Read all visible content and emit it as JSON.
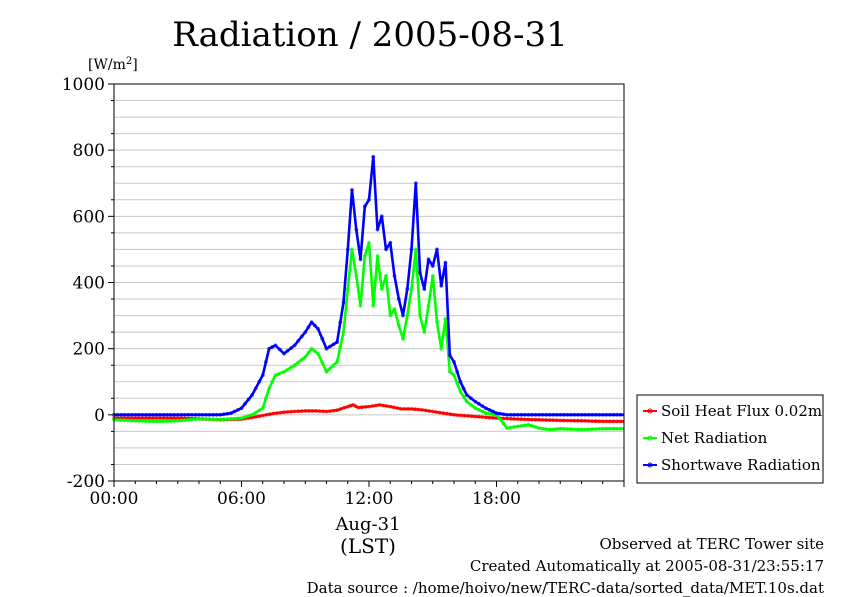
{
  "chart_data": {
    "type": "line",
    "title": "Radiation / 2005-08-31",
    "ylabel_unit": "[W/m",
    "ylabel_sup": "2",
    "ylabel_close": "]",
    "ylim": [
      -200,
      1000
    ],
    "yticks": [
      -200,
      0,
      200,
      400,
      600,
      800,
      1000
    ],
    "y_tick_labels": [
      "-200",
      "0",
      "200",
      "400",
      "600",
      "800",
      "1000"
    ],
    "xlim_hours": [
      0,
      24
    ],
    "xticks_hours": [
      0,
      6,
      12,
      18
    ],
    "x_tick_labels": [
      "00:00",
      "06:00",
      "12:00",
      "18:00"
    ],
    "date_label": "Aug-31",
    "xlabel": "(LST)",
    "grid": true,
    "legend_position": "right",
    "series": [
      {
        "name": "Soil Heat Flux 0.02m",
        "color": "#ff0000",
        "x": [
          0,
          1,
          2,
          3,
          4,
          5,
          6,
          6.5,
          7,
          7.5,
          8,
          8.5,
          9,
          9.5,
          10,
          10.5,
          11,
          11.25,
          11.5,
          12,
          12.5,
          13,
          13.5,
          14,
          14.5,
          15,
          15.5,
          16,
          17,
          18,
          19,
          20,
          21,
          22,
          23,
          24
        ],
        "y": [
          -10,
          -10,
          -10,
          -10,
          -12,
          -15,
          -13,
          -8,
          -2,
          4,
          8,
          10,
          12,
          12,
          10,
          14,
          25,
          30,
          22,
          25,
          30,
          25,
          18,
          18,
          15,
          10,
          5,
          0,
          -5,
          -10,
          -13,
          -15,
          -17,
          -18,
          -20,
          -20
        ]
      },
      {
        "name": "Net Radiation",
        "color": "#00ff00",
        "x": [
          0,
          1,
          2,
          3,
          4,
          5,
          5.5,
          6,
          6.5,
          7,
          7.3,
          7.6,
          8,
          8.5,
          9,
          9.3,
          9.6,
          10,
          10.5,
          10.8,
          11,
          11.2,
          11.4,
          11.6,
          11.8,
          12,
          12.2,
          12.4,
          12.6,
          12.8,
          13,
          13.2,
          13.4,
          13.6,
          13.8,
          14,
          14.2,
          14.4,
          14.6,
          14.8,
          15,
          15.2,
          15.4,
          15.6,
          15.8,
          16,
          16.3,
          16.6,
          17,
          17.5,
          18,
          18.5,
          19,
          19.5,
          20,
          20.5,
          21,
          22,
          23,
          24
        ],
        "y": [
          -15,
          -18,
          -20,
          -18,
          -12,
          -14,
          -12,
          -10,
          0,
          20,
          80,
          120,
          130,
          150,
          175,
          200,
          185,
          130,
          160,
          250,
          380,
          500,
          420,
          330,
          480,
          520,
          330,
          480,
          380,
          420,
          300,
          320,
          270,
          230,
          300,
          380,
          500,
          300,
          250,
          330,
          420,
          280,
          200,
          290,
          130,
          120,
          70,
          40,
          20,
          5,
          0,
          -40,
          -35,
          -30,
          -40,
          -45,
          -42,
          -45,
          -42,
          -42
        ]
      },
      {
        "name": "Shortwave Radiation",
        "color": "#0000ff",
        "x": [
          0,
          1,
          2,
          3,
          4,
          5,
          5.5,
          6,
          6.5,
          7,
          7.3,
          7.6,
          8,
          8.5,
          9,
          9.3,
          9.6,
          10,
          10.5,
          10.8,
          11,
          11.2,
          11.4,
          11.6,
          11.8,
          12,
          12.2,
          12.4,
          12.6,
          12.8,
          13,
          13.2,
          13.4,
          13.6,
          13.8,
          14,
          14.2,
          14.4,
          14.6,
          14.8,
          15,
          15.2,
          15.4,
          15.6,
          15.8,
          16,
          16.3,
          16.6,
          17,
          17.5,
          18,
          18.5,
          19,
          20,
          21,
          22,
          23,
          24
        ],
        "y": [
          0,
          0,
          0,
          0,
          0,
          0,
          5,
          20,
          60,
          120,
          200,
          210,
          185,
          210,
          250,
          280,
          260,
          200,
          220,
          340,
          500,
          680,
          560,
          470,
          630,
          650,
          780,
          560,
          600,
          500,
          520,
          420,
          350,
          300,
          380,
          500,
          700,
          430,
          380,
          470,
          450,
          500,
          390,
          460,
          180,
          160,
          100,
          60,
          40,
          20,
          5,
          0,
          0,
          0,
          0,
          0,
          0,
          0
        ]
      }
    ]
  },
  "footer": {
    "observed": "Observed at TERC Tower site",
    "created": "Created Automatically at 2005-08-31/23:55:17",
    "source": "Data source : /home/hoivo/new/TERC-data/sorted_data/MET.10s.dat"
  }
}
